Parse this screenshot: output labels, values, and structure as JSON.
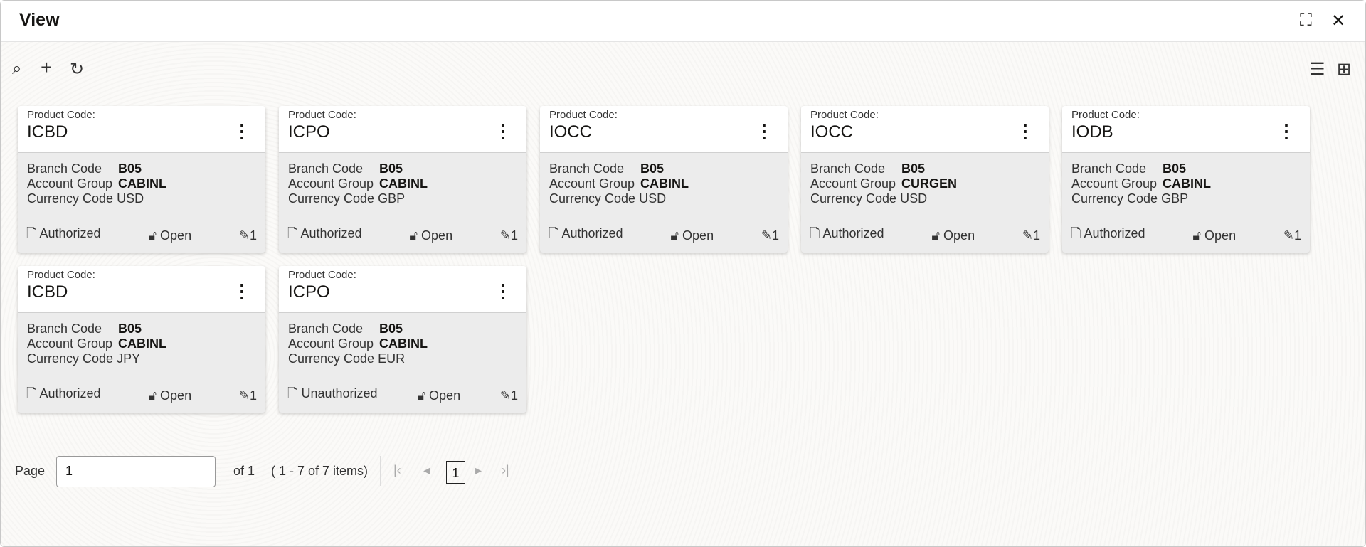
{
  "header": {
    "title": "View",
    "minimize_icon": "collapse-icon",
    "close_icon": "close-icon"
  },
  "toolbar": {
    "search_icon": "search-icon",
    "add_icon": "plus-icon",
    "refresh_icon": "refresh-icon",
    "list_view_icon": "list-icon",
    "grid_view_icon": "grid-icon"
  },
  "labels": {
    "product_code": "Product Code:",
    "branch_code": "Branch Code",
    "account_group": "Account Group",
    "currency_code": "Currency Code"
  },
  "cards": [
    {
      "product": "ICBD",
      "branch": "B05",
      "group": "CABINL",
      "currency": "USD",
      "auth": "Authorized",
      "status": "Open",
      "mods": "1"
    },
    {
      "product": "ICPO",
      "branch": "B05",
      "group": "CABINL",
      "currency": "GBP",
      "auth": "Authorized",
      "status": "Open",
      "mods": "1"
    },
    {
      "product": "IOCC",
      "branch": "B05",
      "group": "CABINL",
      "currency": "USD",
      "auth": "Authorized",
      "status": "Open",
      "mods": "1"
    },
    {
      "product": "IOCC",
      "branch": "B05",
      "group": "CURGEN",
      "currency": "USD",
      "auth": "Authorized",
      "status": "Open",
      "mods": "1"
    },
    {
      "product": "IODB",
      "branch": "B05",
      "group": "CABINL",
      "currency": "GBP",
      "auth": "Authorized",
      "status": "Open",
      "mods": "1"
    },
    {
      "product": "ICBD",
      "branch": "B05",
      "group": "CABINL",
      "currency": "JPY",
      "auth": "Authorized",
      "status": "Open",
      "mods": "1"
    },
    {
      "product": "ICPO",
      "branch": "B05",
      "group": "CABINL",
      "currency": "EUR",
      "auth": "Unauthorized",
      "status": "Open",
      "mods": "1"
    }
  ],
  "pagination": {
    "page_label": "Page",
    "page_value": "1",
    "of_label": "of 1",
    "items_label": "( 1 - 7 of 7 items)",
    "current_page": "1"
  }
}
